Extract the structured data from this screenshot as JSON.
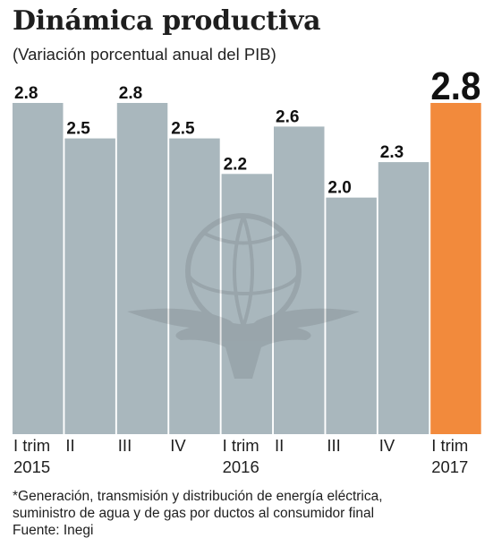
{
  "title": "Dinámica productiva",
  "subtitle": "(Variación porcentual anual del PIB)",
  "chart_data": {
    "type": "bar",
    "categories": [
      [
        "I trim",
        "2015"
      ],
      [
        "II",
        ""
      ],
      [
        "III",
        ""
      ],
      [
        "IV",
        ""
      ],
      [
        "I trim",
        "2016"
      ],
      [
        "II",
        ""
      ],
      [
        "III",
        ""
      ],
      [
        "IV",
        ""
      ],
      [
        "I trim",
        "2017"
      ]
    ],
    "values": [
      2.8,
      2.5,
      2.8,
      2.5,
      2.2,
      2.6,
      2.0,
      2.3,
      2.8
    ],
    "value_labels": [
      "2.8",
      "2.5",
      "2.8",
      "2.5",
      "2.2",
      "2.6",
      "2.0",
      "2.3",
      "2.8"
    ],
    "highlight_index": 8,
    "ylim": [
      0,
      2.8
    ],
    "grid": false,
    "colors": {
      "bar": "#a9b7bd",
      "highlight": "#f28a3c",
      "label": "#111111"
    }
  },
  "footnote": [
    "*Generación, transmisión y distribución de energía eléctrica,",
    "suministro de agua y de gas por ductos al consumidor final",
    "Fuente: Inegi"
  ]
}
